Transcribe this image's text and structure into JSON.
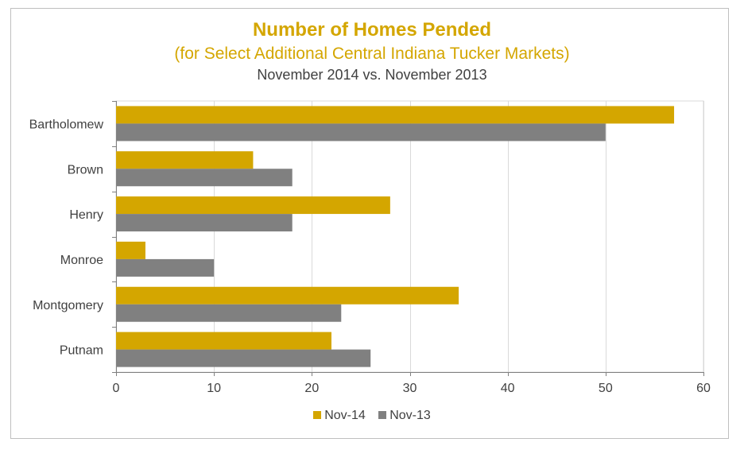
{
  "chart_data": {
    "type": "bar",
    "orientation": "horizontal",
    "title": "Number of Homes Pended",
    "subtitle": "(for Select Additional Central Indiana Tucker Markets)",
    "subtitle2": "November 2014 vs. November 2013",
    "categories": [
      "Bartholomew",
      "Brown",
      "Henry",
      "Monroe",
      "Montgomery",
      "Putnam"
    ],
    "series": [
      {
        "name": "Nov-14",
        "color": "#d4a600",
        "values": [
          57,
          14,
          28,
          3,
          35,
          22
        ]
      },
      {
        "name": "Nov-13",
        "color": "#808080",
        "values": [
          50,
          18,
          18,
          10,
          23,
          26
        ]
      }
    ],
    "xlim": [
      0,
      60
    ],
    "xticks": [
      0,
      10,
      20,
      30,
      40,
      50,
      60
    ],
    "grid": true,
    "legend_position": "bottom"
  }
}
